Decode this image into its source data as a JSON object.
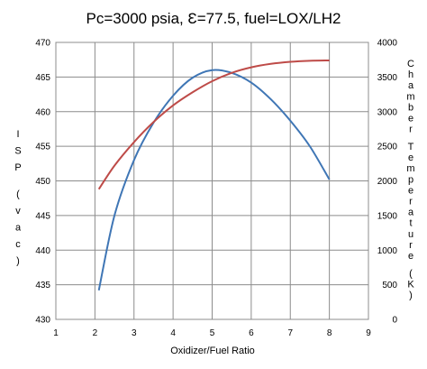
{
  "chart_data": {
    "type": "line",
    "title": "Pc=3000 psia, Ɛ=77.5, fuel=LOX/LH2",
    "xlabel": "Oxidizer/Fuel Ratio",
    "ylabel_left": "ISP (vac)",
    "ylabel_right": "Chamber Temperature (K)",
    "xlim": [
      1,
      9
    ],
    "ylim_left": [
      430,
      470
    ],
    "ylim_right": [
      0,
      4000
    ],
    "x_ticks": [
      "1",
      "2",
      "3",
      "4",
      "5",
      "6",
      "7",
      "8",
      "9"
    ],
    "y_left_ticks": [
      "430",
      "435",
      "440",
      "445",
      "450",
      "455",
      "460",
      "465",
      "470"
    ],
    "y_right_ticks": [
      "0",
      "500",
      "1000",
      "1500",
      "2000",
      "2500",
      "3000",
      "3500",
      "4000"
    ],
    "grid": true,
    "colors": {
      "isp": "#3f76b5",
      "temperature": "#be4b48"
    },
    "series": [
      {
        "axis": "left",
        "x": [
          2.1,
          2.5,
          3.0,
          3.5,
          4.0,
          4.5,
          5.0,
          5.5,
          6.0,
          6.5,
          7.0,
          7.5,
          8.0
        ],
        "values": [
          434.2,
          445.0,
          453.0,
          458.4,
          462.3,
          464.9,
          466.0,
          465.6,
          464.2,
          461.8,
          458.7,
          455.0,
          450.2
        ]
      },
      {
        "axis": "right",
        "x": [
          2.1,
          2.5,
          3.0,
          3.5,
          4.0,
          4.5,
          5.0,
          5.5,
          6.0,
          6.5,
          7.0,
          7.5,
          8.0
        ],
        "values": [
          1880,
          2220,
          2560,
          2850,
          3090,
          3280,
          3440,
          3560,
          3640,
          3690,
          3720,
          3735,
          3740
        ]
      }
    ]
  }
}
